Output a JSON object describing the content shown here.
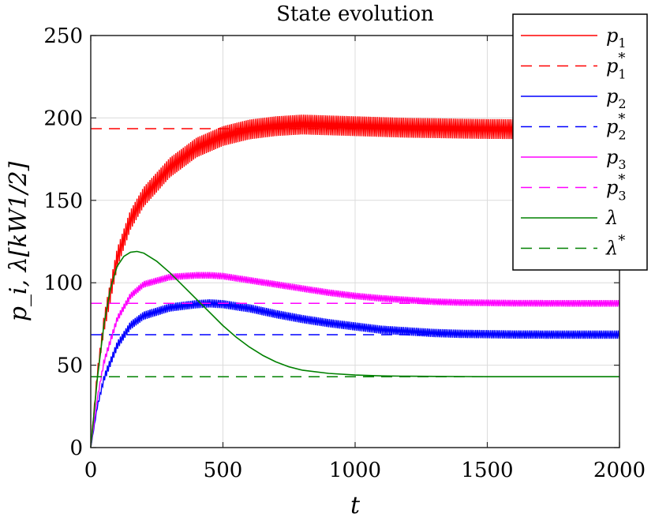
{
  "chart_data": {
    "type": "line",
    "title": "State evolution",
    "xlabel": "t",
    "ylabel": "p_i, λ[kW1/2]",
    "xlim": [
      0,
      2000
    ],
    "ylim": [
      0,
      250
    ],
    "xticks": [
      0,
      500,
      1000,
      1500,
      2000
    ],
    "yticks": [
      0,
      50,
      100,
      150,
      200,
      250
    ],
    "xtick_labels": [
      "0",
      "500",
      "1000",
      "1500",
      "2000"
    ],
    "ytick_labels": [
      "0",
      "50",
      "100",
      "150",
      "200",
      "250"
    ],
    "grid": true,
    "legend_position": "top-right",
    "series": [
      {
        "name": "p1",
        "label_base": "p",
        "label_sub": "1",
        "label_sup": "",
        "color": "#ff0000",
        "style": "solid",
        "band": 6,
        "x": [
          0,
          25,
          50,
          100,
          150,
          200,
          300,
          400,
          500,
          600,
          700,
          800,
          900,
          1000,
          1100,
          1200,
          1300,
          1400,
          1500,
          1600,
          1700,
          1800,
          1900,
          2000
        ],
        "y": [
          0,
          45,
          75,
          115,
          138,
          152,
          170,
          182,
          189,
          193,
          195,
          196,
          195.5,
          195,
          194.5,
          194,
          193.8,
          193.5,
          193.3,
          193.2,
          193.1,
          193,
          193,
          193
        ]
      },
      {
        "name": "p1*",
        "label_base": "p",
        "label_sub": "1",
        "label_sup": "*",
        "color": "#ff0000",
        "style": "dashed",
        "band": 0,
        "x": [
          0,
          2000
        ],
        "y": [
          193.5,
          193.5
        ]
      },
      {
        "name": "p2",
        "label_base": "p",
        "label_sub": "2",
        "label_sup": "",
        "color": "#0000ff",
        "style": "solid",
        "band": 2.5,
        "x": [
          0,
          25,
          50,
          100,
          150,
          200,
          300,
          400,
          450,
          500,
          600,
          700,
          800,
          900,
          1000,
          1100,
          1200,
          1300,
          1400,
          1500,
          1600,
          1800,
          2000
        ],
        "y": [
          0,
          25,
          42,
          62,
          74,
          80,
          85,
          87,
          87.5,
          87,
          84.5,
          81,
          78,
          75.5,
          73.5,
          71.5,
          70.5,
          69.5,
          69,
          68.8,
          68.6,
          68.5,
          68.5
        ]
      },
      {
        "name": "p2*",
        "label_base": "p",
        "label_sub": "2",
        "label_sup": "*",
        "color": "#0000ff",
        "style": "dashed",
        "band": 0,
        "x": [
          0,
          2000
        ],
        "y": [
          68.5,
          68.5
        ]
      },
      {
        "name": "p3",
        "label_base": "p",
        "label_sub": "3",
        "label_sup": "",
        "color": "#ff00ff",
        "style": "solid",
        "band": 2,
        "x": [
          0,
          25,
          50,
          100,
          150,
          200,
          300,
          400,
          450,
          500,
          600,
          700,
          800,
          900,
          1000,
          1100,
          1200,
          1300,
          1400,
          1500,
          1600,
          1800,
          2000
        ],
        "y": [
          0,
          30,
          52,
          78,
          92,
          99,
          103.5,
          104.5,
          104.5,
          104,
          101.5,
          99,
          96.5,
          94,
          92,
          90.5,
          89.5,
          88.5,
          88,
          87.8,
          87.6,
          87.5,
          87.5
        ]
      },
      {
        "name": "p3*",
        "label_base": "p",
        "label_sub": "3",
        "label_sup": "*",
        "color": "#ff00ff",
        "style": "dashed",
        "band": 0,
        "x": [
          0,
          2000
        ],
        "y": [
          87.5,
          87.5
        ]
      },
      {
        "name": "lambda",
        "label_base": "λ",
        "label_sub": "",
        "label_sup": "",
        "color": "#008000",
        "style": "solid",
        "band": 0,
        "x": [
          0,
          25,
          50,
          75,
          100,
          125,
          150,
          175,
          200,
          250,
          300,
          350,
          400,
          450,
          500,
          550,
          600,
          650,
          700,
          750,
          800,
          900,
          1000,
          1100,
          1200,
          1300,
          1400,
          1500,
          1600,
          1800,
          2000
        ],
        "y": [
          0,
          42,
          75,
          97,
          110,
          116,
          118.5,
          119,
          118,
          113,
          106,
          98,
          90,
          82,
          74,
          67,
          61,
          56,
          52,
          49,
          47,
          45,
          44,
          43.5,
          43.3,
          43.2,
          43.1,
          43,
          43,
          43,
          43
        ]
      },
      {
        "name": "lambda*",
        "label_base": "λ",
        "label_sub": "",
        "label_sup": "*",
        "color": "#008000",
        "style": "dashed",
        "band": 0,
        "x": [
          0,
          2000
        ],
        "y": [
          43,
          43
        ]
      }
    ]
  }
}
